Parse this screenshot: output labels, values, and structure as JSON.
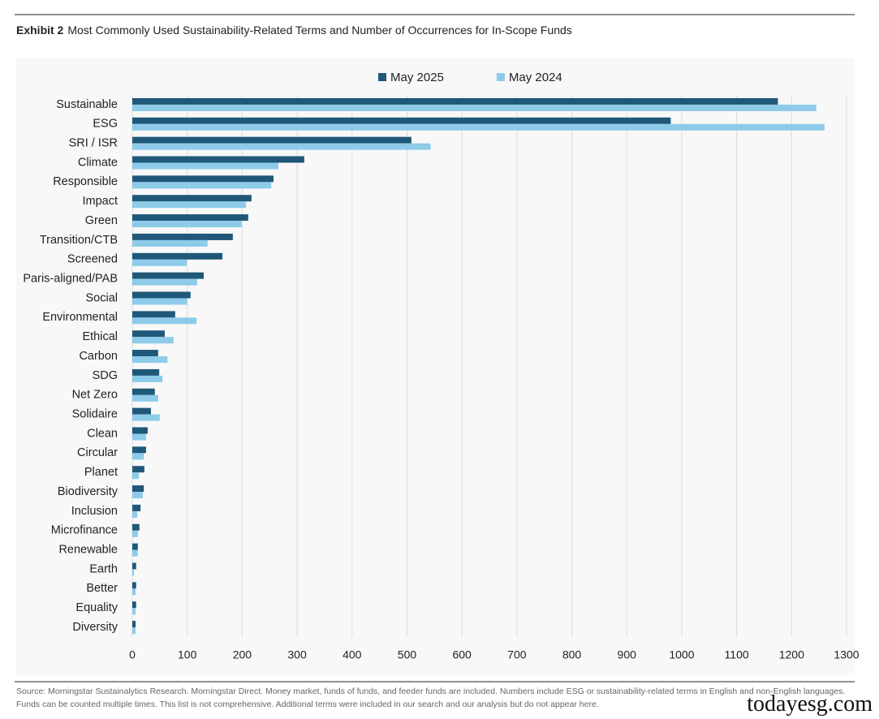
{
  "chart_data": {
    "type": "hbar",
    "title_label": "Exhibit 2",
    "title": "Most Commonly Used Sustainability-Related Terms and Number of Occurrences for In-Scope Funds",
    "categories": [
      "Sustainable",
      "ESG",
      "SRI / ISR",
      "Climate",
      "Responsible",
      "Impact",
      "Green",
      "Transition/CTB",
      "Screened",
      "Paris-aligned/PAB",
      "Social",
      "Environmental",
      "Ethical",
      "Carbon",
      "SDG",
      "Net Zero",
      "Solidaire",
      "Clean",
      "Circular",
      "Planet",
      "Biodiversity",
      "Inclusion",
      "Microfinance",
      "Renewable",
      "Earth",
      "Better",
      "Equality",
      "Diversity"
    ],
    "series": [
      {
        "name": "May 2025",
        "color": "#1f5878",
        "values": [
          1175,
          980,
          508,
          313,
          257,
          217,
          211,
          183,
          164,
          130,
          106,
          78,
          59,
          47,
          49,
          41,
          34,
          28,
          25,
          22,
          21,
          15,
          13,
          10,
          7,
          7,
          7,
          6
        ]
      },
      {
        "name": "May 2024",
        "color": "#8dcbe9",
        "values": [
          1245,
          1260,
          543,
          266,
          253,
          207,
          199,
          137,
          99,
          118,
          100,
          117,
          75,
          64,
          55,
          47,
          50,
          25,
          21,
          12,
          19,
          9,
          10,
          10,
          3,
          6,
          6,
          6
        ]
      }
    ],
    "xlim": [
      0,
      1300
    ],
    "xticks": [
      0,
      100,
      200,
      300,
      400,
      500,
      600,
      700,
      800,
      900,
      1000,
      1100,
      1200,
      1300
    ],
    "grid": true,
    "legend": "top",
    "source": "Source: Morningstar Sustainalytics Research. Morningstar Direct. Money market, funds of funds, and feeder funds are included. Numbers include ESG or sustainability-related terms in English and non-English languages. Funds can be counted multiple times. This list is not comprehensive. Additional terms were included in our search and our analysis but do not appear here.",
    "watermark": "todayesg.com"
  }
}
